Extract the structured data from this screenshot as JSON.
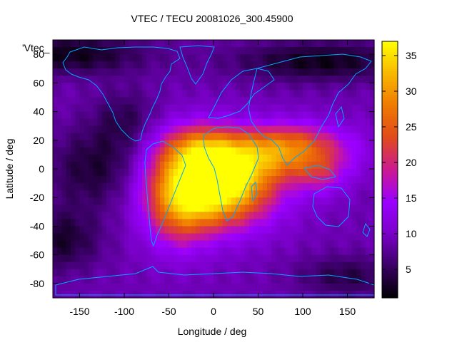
{
  "chart_data": {
    "type": "heatmap",
    "title": "VTEC / TECU 20081026_300.45900",
    "xlabel": "Longitude / deg",
    "ylabel": "Latitude / deg",
    "series_label": "'Vtec_",
    "xlim": [
      -180,
      180
    ],
    "ylim": [
      -90,
      90
    ],
    "x_ticks": [
      -150,
      -100,
      -50,
      0,
      50,
      100,
      150
    ],
    "y_ticks": [
      80,
      60,
      40,
      20,
      0,
      -20,
      -40,
      -60,
      -80
    ],
    "colorbar": {
      "range": [
        1,
        37
      ],
      "ticks": [
        5,
        10,
        15,
        20,
        25,
        30,
        35
      ],
      "colormap": [
        "#000000",
        "#3a0066",
        "#7a00c8",
        "#9a00ff",
        "#cc1a90",
        "#e04a1c",
        "#f07a00",
        "#f8b800",
        "#ffff00"
      ]
    },
    "grid_step_deg": 5,
    "background_vtec": 9,
    "features": [
      {
        "lon": 0,
        "lat": -10,
        "peak": 34,
        "sx": 45,
        "sy": 20
      },
      {
        "lon": -40,
        "lat": -30,
        "peak": 10,
        "sx": 25,
        "sy": 20
      },
      {
        "lon": 80,
        "lat": 10,
        "peak": 14,
        "sx": 50,
        "sy": 12
      },
      {
        "lon": -20,
        "lat": 15,
        "peak": 10,
        "sx": 30,
        "sy": 12
      },
      {
        "lon": 120,
        "lat": -5,
        "peak": 6,
        "sx": 20,
        "sy": 10
      },
      {
        "lon": 90,
        "lat": 20,
        "peak": 6,
        "sx": 40,
        "sy": 10
      },
      {
        "lon": -160,
        "lat": 80,
        "peak": -7,
        "sx": 60,
        "sy": 10
      },
      {
        "lon": 120,
        "lat": 75,
        "peak": -7,
        "sx": 70,
        "sy": 10
      },
      {
        "lon": -130,
        "lat": 0,
        "peak": -6,
        "sx": 40,
        "sy": 20
      },
      {
        "lon": -170,
        "lat": -50,
        "peak": -6,
        "sx": 30,
        "sy": 15
      },
      {
        "lon": 150,
        "lat": -75,
        "peak": -5,
        "sx": 40,
        "sy": 10
      },
      {
        "lon": -100,
        "lat": 35,
        "peak": -4,
        "sx": 25,
        "sy": 15
      }
    ]
  }
}
